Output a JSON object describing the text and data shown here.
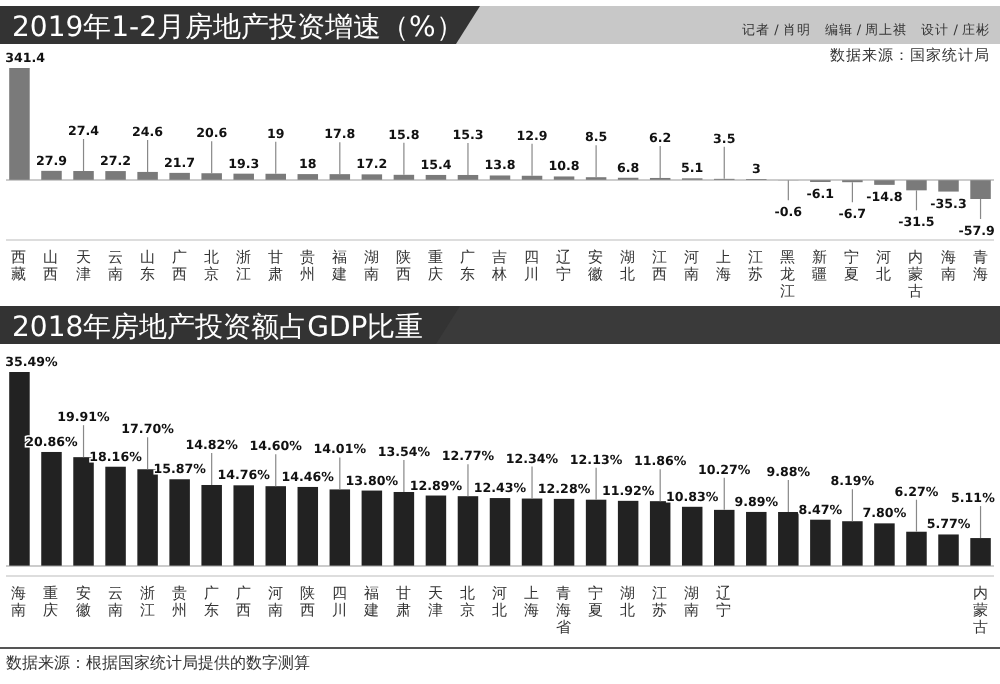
{
  "chart_data": [
    {
      "type": "bar",
      "title": "2019年1-2月房地产投资增速（%）",
      "color": "#7a7a7a",
      "data_labels": true,
      "categories": [
        "西藏",
        "山西",
        "天津",
        "云南",
        "山东",
        "广西",
        "北京",
        "浙江",
        "甘肃",
        "贵州",
        "福建",
        "湖南",
        "陕西",
        "重庆",
        "广东",
        "吉林",
        "四川",
        "辽宁",
        "安徽",
        "湖北",
        "江西",
        "河南",
        "上海",
        "江苏",
        "黑龙江",
        "新疆",
        "宁夏",
        "河北",
        "内蒙古",
        "海南",
        "青海"
      ],
      "values": [
        341.4,
        27.9,
        27.4,
        27.2,
        24.6,
        21.7,
        20.6,
        19.3,
        19,
        18,
        17.8,
        17.2,
        15.8,
        15.4,
        15.3,
        13.8,
        12.9,
        10.8,
        8.5,
        6.8,
        6.2,
        5.1,
        3.5,
        3,
        -0.6,
        -6.1,
        -6.7,
        -14.8,
        -31.5,
        -35.3,
        -57.9
      ],
      "annotations": [
        "记者 / 肖明　编辑 / 周上祺　设计 / 庄彬",
        "数据来源：国家统计局"
      ]
    },
    {
      "type": "bar",
      "title": "2018年房地产投资额占GDP比重",
      "color": "#222222",
      "categories": [
        "海南",
        "重庆",
        "安徽",
        "云南",
        "浙江",
        "贵州",
        "广东",
        "广西",
        "河南",
        "陕西",
        "四川",
        "福建",
        "甘肃",
        "天津",
        "北京",
        "河北",
        "上海",
        "青海省",
        "宁夏",
        "湖北",
        "江苏",
        "湖南",
        "辽宁",
        null,
        null,
        null,
        null,
        null,
        null,
        null,
        "内蒙古"
      ],
      "values": [
        35.49,
        20.86,
        19.91,
        18.16,
        17.7,
        15.87,
        14.82,
        14.76,
        14.6,
        14.46,
        14.01,
        13.8,
        13.54,
        12.89,
        12.77,
        12.43,
        12.34,
        12.28,
        12.13,
        11.92,
        11.86,
        10.83,
        10.27,
        9.89,
        9.88,
        8.47,
        8.19,
        7.8,
        6.27,
        5.77,
        5.11
      ],
      "value_labels": [
        "35.49%",
        "20.86%",
        "19.91%",
        "18.16%",
        "17.70%",
        "15.87%",
        "14.82%",
        "14.76%",
        "14.60%",
        "14.46%",
        "14.01%",
        "13.80%",
        "13.54%",
        "12.89%",
        "12.77%",
        "12.43%",
        "12.34%",
        "12.28%",
        "12.13%",
        "11.92%",
        "11.86%",
        "10.83%",
        "10.27%",
        "9.89%",
        "9.88%",
        "8.47%",
        "8.19%",
        "7.80%",
        "6.27%",
        "5.77%",
        "5.11%"
      ],
      "annotations": [
        "数据来源：根据国家统计局提供的数字测算"
      ]
    }
  ]
}
